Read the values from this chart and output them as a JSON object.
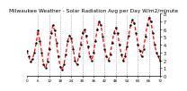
{
  "title": "Milwaukee Weather - Solar Radiation Avg per Day W/m2/minute",
  "line_color": "#FF0000",
  "line_style": "--",
  "line_width": 0.9,
  "marker": ".",
  "marker_color": "#000000",
  "marker_size": 1.5,
  "background_color": "#FFFFFF",
  "grid_color": "#888888",
  "grid_style": ":",
  "ylim": [
    0,
    8
  ],
  "ytick_labels": [
    "8",
    "7",
    "6",
    "5",
    "4",
    "3",
    "2",
    "1",
    "0"
  ],
  "yticks": [
    8,
    7,
    6,
    5,
    4,
    3,
    2,
    1,
    0
  ],
  "ylabel_fontsize": 3.5,
  "xlabel_fontsize": 3.0,
  "title_fontsize": 4.2,
  "values": [
    3.2,
    2.5,
    1.8,
    2.2,
    3.0,
    4.2,
    5.8,
    4.5,
    3.0,
    1.5,
    1.0,
    1.8,
    3.5,
    5.5,
    6.5,
    5.8,
    4.2,
    2.5,
    1.2,
    0.8,
    1.5,
    2.8,
    4.5,
    5.2,
    4.8,
    3.5,
    2.0,
    1.5,
    2.5,
    4.0,
    5.5,
    6.0,
    5.2,
    3.8,
    2.5,
    2.0,
    3.0,
    4.5,
    6.0,
    7.0,
    6.5,
    5.0,
    3.5,
    2.5,
    2.0,
    2.8,
    4.2,
    5.5,
    6.2,
    5.5,
    4.0,
    2.8,
    2.0,
    2.5,
    3.8,
    5.2,
    6.5,
    7.2,
    6.8,
    5.5,
    4.0,
    3.2,
    2.5,
    3.5,
    5.0,
    6.5,
    7.5,
    7.0,
    5.5,
    4.0,
    3.0,
    2.5,
    2.0
  ],
  "vgrid_positions": [
    6,
    12,
    18,
    24,
    30,
    36,
    42,
    48,
    54,
    60,
    66,
    72
  ],
  "x_tick_interval": 6
}
